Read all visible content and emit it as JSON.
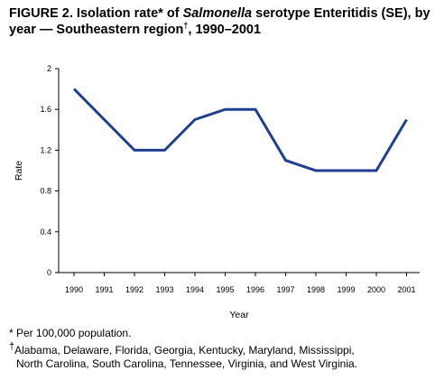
{
  "title": {
    "part1": "FIGURE 2. Isolation rate* of ",
    "italic": "Salmonella",
    "part2": " serotype Enteritidis (SE), by year — Southeastern region",
    "dagger": "†",
    "part3": ", 1990–2001"
  },
  "chart_data": {
    "type": "line",
    "title": "FIGURE 2. Isolation rate* of Salmonella serotype Enteritidis (SE), by year — Southeastern region†, 1990–2001",
    "xlabel": "Year",
    "ylabel": "Rate",
    "x": [
      "1990",
      "1991",
      "1992",
      "1993",
      "1994",
      "1995",
      "1996",
      "1997",
      "1998",
      "1999",
      "2000",
      "2001"
    ],
    "series": [
      {
        "values": [
          1.8,
          1.5,
          1.2,
          1.2,
          1.5,
          1.6,
          1.6,
          1.1,
          1.0,
          1.0,
          1.0,
          1.5
        ],
        "color": "#1f3f8f"
      }
    ],
    "ylim": [
      0,
      2
    ],
    "yticks": [
      "0",
      "0.4",
      "0.8",
      "1.2",
      "1.6",
      "2"
    ],
    "grid": false
  },
  "footnotes": {
    "star_symbol": "*",
    "star_text": " Per 100,000 population.",
    "dagger_symbol": "†",
    "dagger_line1": "Alabama, Delaware, Florida, Georgia, Kentucky, Maryland, Mississippi,",
    "dagger_line2": "North Carolina, South Carolina, Tennessee, Virginia, and West Virginia."
  }
}
